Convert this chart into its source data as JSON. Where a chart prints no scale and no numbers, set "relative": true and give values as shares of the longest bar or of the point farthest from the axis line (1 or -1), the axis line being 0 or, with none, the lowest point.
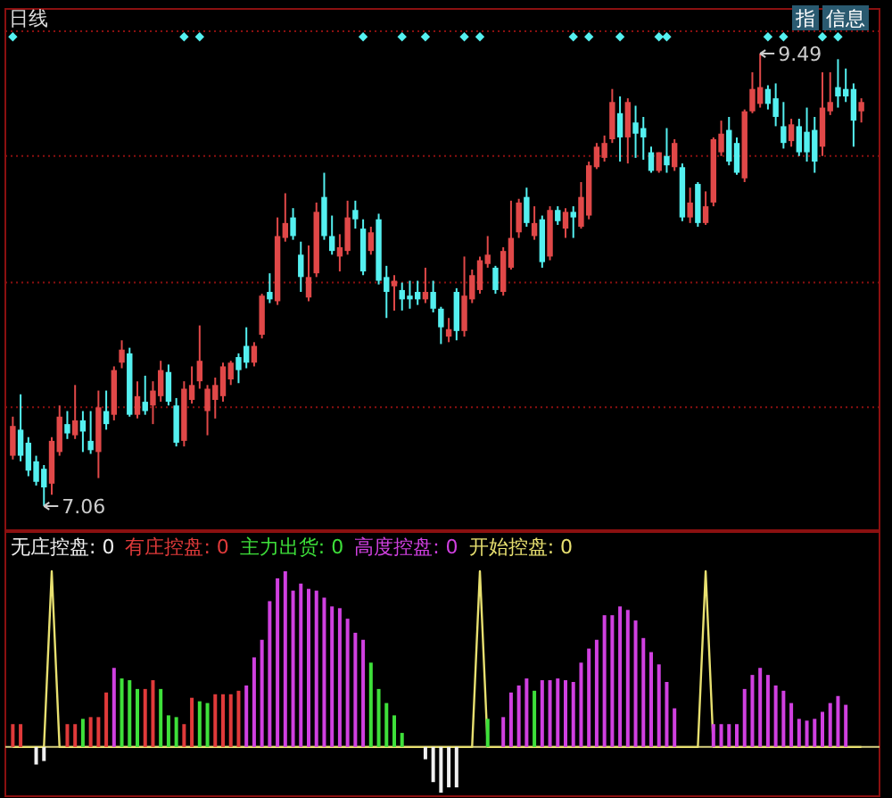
{
  "chart_data": [
    {
      "type": "candlestick",
      "title": "日线",
      "grid": "y",
      "ylim": [
        6.93,
        9.73
      ],
      "yticks": [
        {
          "value": 7.59,
          "label": null
        },
        {
          "value": 8.26,
          "label": null
        },
        {
          "value": 8.94,
          "label": null
        },
        {
          "value": 9.61,
          "label": null
        }
      ],
      "categories": [
        null,
        null,
        null,
        null,
        null,
        null,
        null,
        null,
        null,
        null,
        null,
        null,
        null,
        null,
        null,
        null,
        null,
        null,
        null,
        null,
        null,
        null,
        null,
        null,
        null,
        null,
        null,
        null,
        null,
        null,
        null,
        null,
        null,
        null,
        null,
        null,
        null,
        null,
        null,
        null,
        null,
        null,
        null,
        null,
        null,
        null,
        null,
        null,
        null,
        null,
        null,
        null,
        null,
        null,
        null,
        null,
        null,
        null,
        null,
        null,
        null,
        null,
        null,
        null,
        null,
        null,
        null,
        null,
        null,
        null,
        null,
        null,
        null,
        null,
        null,
        null,
        null,
        null,
        null,
        null,
        null,
        null,
        null,
        null,
        null,
        null,
        null,
        null,
        null,
        null,
        null,
        null,
        null,
        null,
        null,
        null,
        null,
        null,
        null,
        null,
        null,
        null,
        null,
        null,
        null,
        null,
        null,
        null,
        null,
        null
      ],
      "ohlc": [
        [
          7.33,
          7.54,
          7.31,
          7.49
        ],
        [
          7.47,
          7.66,
          7.3,
          7.33
        ],
        [
          7.4,
          7.43,
          7.22,
          7.25
        ],
        [
          7.3,
          7.33,
          7.17,
          7.19
        ],
        [
          7.26,
          7.28,
          7.06,
          7.16
        ],
        [
          7.18,
          7.43,
          7.12,
          7.41
        ],
        [
          7.35,
          7.6,
          7.33,
          7.54
        ],
        [
          7.5,
          7.57,
          7.42,
          7.45
        ],
        [
          7.44,
          7.71,
          7.42,
          7.52
        ],
        [
          7.52,
          7.57,
          7.35,
          7.46
        ],
        [
          7.41,
          7.57,
          7.34,
          7.36
        ],
        [
          7.35,
          7.68,
          7.21,
          7.59
        ],
        [
          7.57,
          7.68,
          7.47,
          7.5
        ],
        [
          7.55,
          7.81,
          7.52,
          7.79
        ],
        [
          7.83,
          7.95,
          7.8,
          7.9
        ],
        [
          7.88,
          7.91,
          7.54,
          7.55
        ],
        [
          7.55,
          7.73,
          7.53,
          7.65
        ],
        [
          7.62,
          7.76,
          7.55,
          7.57
        ],
        [
          7.6,
          7.73,
          7.5,
          7.68
        ],
        [
          7.65,
          7.84,
          7.62,
          7.79
        ],
        [
          7.78,
          7.82,
          7.6,
          7.62
        ],
        [
          7.6,
          7.64,
          7.38,
          7.4
        ],
        [
          7.41,
          7.73,
          7.38,
          7.69
        ],
        [
          7.63,
          7.81,
          7.61,
          7.71
        ],
        [
          7.73,
          8.03,
          7.69,
          7.84
        ],
        [
          7.57,
          7.71,
          7.44,
          7.69
        ],
        [
          7.63,
          7.75,
          7.53,
          7.71
        ],
        [
          7.65,
          7.83,
          7.62,
          7.81
        ],
        [
          7.74,
          7.84,
          7.71,
          7.83
        ],
        [
          7.86,
          7.88,
          7.72,
          7.79
        ],
        [
          7.92,
          8.02,
          7.8,
          7.83
        ],
        [
          7.83,
          7.94,
          7.81,
          7.92
        ],
        [
          7.98,
          8.2,
          7.96,
          8.19
        ],
        [
          8.21,
          8.31,
          8.15,
          8.17
        ],
        [
          8.16,
          8.61,
          8.14,
          8.51
        ],
        [
          8.5,
          8.74,
          8.48,
          8.58
        ],
        [
          8.61,
          8.66,
          8.49,
          8.51
        ],
        [
          8.41,
          8.48,
          8.21,
          8.29
        ],
        [
          8.18,
          8.46,
          8.16,
          8.29
        ],
        [
          8.31,
          8.69,
          8.29,
          8.64
        ],
        [
          8.72,
          8.85,
          8.49,
          8.51
        ],
        [
          8.51,
          8.62,
          8.41,
          8.43
        ],
        [
          8.4,
          8.52,
          8.32,
          8.45
        ],
        [
          8.43,
          8.7,
          8.41,
          8.61
        ],
        [
          8.65,
          8.7,
          8.55,
          8.6
        ],
        [
          8.55,
          8.6,
          8.3,
          8.32
        ],
        [
          8.43,
          8.56,
          8.41,
          8.53
        ],
        [
          8.6,
          8.63,
          8.25,
          8.27
        ],
        [
          8.29,
          8.35,
          8.07,
          8.21
        ],
        [
          8.24,
          8.3,
          8.11,
          8.27
        ],
        [
          8.22,
          8.26,
          8.11,
          8.17
        ],
        [
          8.19,
          8.27,
          8.12,
          8.17
        ],
        [
          8.21,
          8.27,
          8.14,
          8.17
        ],
        [
          8.17,
          8.34,
          8.15,
          8.21
        ],
        [
          8.21,
          8.27,
          8.1,
          8.12
        ],
        [
          8.12,
          8.13,
          7.93,
          8.02
        ],
        [
          7.97,
          8.07,
          7.94,
          8.01
        ],
        [
          8.21,
          8.23,
          7.95,
          8.0
        ],
        [
          8.0,
          8.4,
          7.97,
          8.19
        ],
        [
          8.17,
          8.33,
          8.15,
          8.3
        ],
        [
          8.22,
          8.4,
          8.2,
          8.38
        ],
        [
          8.36,
          8.51,
          8.34,
          8.41
        ],
        [
          8.34,
          8.35,
          8.2,
          8.22
        ],
        [
          8.21,
          8.45,
          8.19,
          8.43
        ],
        [
          8.34,
          8.7,
          8.33,
          8.5
        ],
        [
          8.53,
          8.71,
          8.5,
          8.69
        ],
        [
          8.72,
          8.77,
          8.56,
          8.58
        ],
        [
          8.51,
          8.67,
          8.49,
          8.58
        ],
        [
          8.6,
          8.62,
          8.34,
          8.37
        ],
        [
          8.4,
          8.67,
          8.38,
          8.65
        ],
        [
          8.65,
          8.67,
          8.57,
          8.59
        ],
        [
          8.55,
          8.66,
          8.5,
          8.64
        ],
        [
          8.64,
          8.67,
          8.5,
          8.61
        ],
        [
          8.56,
          8.8,
          8.55,
          8.72
        ],
        [
          8.62,
          8.91,
          8.6,
          8.89
        ],
        [
          8.88,
          9.01,
          8.87,
          8.99
        ],
        [
          8.93,
          9.05,
          8.91,
          9.01
        ],
        [
          9.03,
          9.3,
          9.01,
          9.23
        ],
        [
          9.17,
          9.26,
          8.91,
          9.04
        ],
        [
          9.04,
          9.25,
          8.9,
          9.23
        ],
        [
          9.12,
          9.21,
          8.93,
          9.06
        ],
        [
          9.09,
          9.15,
          8.92,
          9.04
        ],
        [
          8.96,
          8.99,
          8.85,
          8.86
        ],
        [
          8.86,
          8.96,
          8.85,
          8.96
        ],
        [
          8.94,
          9.09,
          8.85,
          8.89
        ],
        [
          8.88,
          9.03,
          8.86,
          9.01
        ],
        [
          8.88,
          8.9,
          8.59,
          8.61
        ],
        [
          8.61,
          8.77,
          8.58,
          8.69
        ],
        [
          8.79,
          8.8,
          8.56,
          8.58
        ],
        [
          8.58,
          8.75,
          8.57,
          8.67
        ],
        [
          8.69,
          9.04,
          8.67,
          9.03
        ],
        [
          8.96,
          9.13,
          8.94,
          9.06
        ],
        [
          9.08,
          9.15,
          8.89,
          8.91
        ],
        [
          9.01,
          9.04,
          8.84,
          8.85
        ],
        [
          8.82,
          9.19,
          8.8,
          9.18
        ],
        [
          9.18,
          9.39,
          9.17,
          9.3
        ],
        [
          9.22,
          9.49,
          9.2,
          9.31
        ],
        [
          9.3,
          9.32,
          9.19,
          9.22
        ],
        [
          9.25,
          9.33,
          9.1,
          9.15
        ],
        [
          9.1,
          9.23,
          8.98,
          9.01
        ],
        [
          9.02,
          9.14,
          8.99,
          9.11
        ],
        [
          9.1,
          9.14,
          8.94,
          8.96
        ],
        [
          9.07,
          9.2,
          8.91,
          8.96
        ],
        [
          9.08,
          9.15,
          8.85,
          8.91
        ],
        [
          8.99,
          9.39,
          8.94,
          9.2
        ],
        [
          9.18,
          9.39,
          9.16,
          9.23
        ],
        [
          9.31,
          9.46,
          9.2,
          9.26
        ],
        [
          9.3,
          9.41,
          9.23,
          9.26
        ],
        [
          9.3,
          9.33,
          8.99,
          9.13
        ],
        [
          9.18,
          9.25,
          9.12,
          9.23
        ]
      ],
      "colors": [
        "#e04848",
        "#54f0f0",
        "#54f0f0",
        "#54f0f0",
        "#54f0f0",
        "#e04848",
        "#e04848",
        "#54f0f0",
        "#e04848",
        "#54f0f0",
        "#54f0f0",
        "#e04848",
        "#54f0f0",
        "#e04848",
        "#e04848",
        "#54f0f0",
        "#e04848",
        "#54f0f0",
        "#e04848",
        "#e04848",
        "#54f0f0",
        "#54f0f0",
        "#e04848",
        "#e04848",
        "#e04848",
        "#e04848",
        "#e04848",
        "#e04848",
        "#e04848",
        "#54f0f0",
        "#54f0f0",
        "#e04848",
        "#e04848",
        "#54f0f0",
        "#e04848",
        "#e04848",
        "#54f0f0",
        "#54f0f0",
        "#e04848",
        "#e04848",
        "#54f0f0",
        "#54f0f0",
        "#e04848",
        "#e04848",
        "#54f0f0",
        "#54f0f0",
        "#e04848",
        "#54f0f0",
        "#54f0f0",
        "#e04848",
        "#54f0f0",
        "#54f0f0",
        "#54f0f0",
        "#e04848",
        "#54f0f0",
        "#54f0f0",
        "#e04848",
        "#54f0f0",
        "#e04848",
        "#e04848",
        "#e04848",
        "#e04848",
        "#54f0f0",
        "#e04848",
        "#e04848",
        "#e04848",
        "#54f0f0",
        "#e04848",
        "#54f0f0",
        "#e04848",
        "#54f0f0",
        "#e04848",
        "#54f0f0",
        "#e04848",
        "#e04848",
        "#e04848",
        "#e04848",
        "#e04848",
        "#54f0f0",
        "#e04848",
        "#54f0f0",
        "#54f0f0",
        "#54f0f0",
        "#e04848",
        "#54f0f0",
        "#e04848",
        "#54f0f0",
        "#e04848",
        "#54f0f0",
        "#e04848",
        "#e04848",
        "#e04848",
        "#54f0f0",
        "#54f0f0",
        "#e04848",
        "#e04848",
        "#e04848",
        "#54f0f0",
        "#54f0f0",
        "#54f0f0",
        "#e04848",
        "#54f0f0",
        "#54f0f0",
        "#54f0f0",
        "#e04848",
        "#e04848",
        "#54f0f0",
        "#54f0f0",
        "#54f0f0",
        "#e04848"
      ],
      "series": [
        {
          "type": "scatter",
          "marker": "diamond",
          "color": "#54f0f0",
          "values": [
            9.58,
            null,
            null,
            null,
            null,
            null,
            null,
            null,
            null,
            null,
            null,
            null,
            null,
            null,
            null,
            null,
            null,
            null,
            null,
            null,
            null,
            null,
            9.58,
            null,
            9.58,
            null,
            null,
            null,
            null,
            null,
            null,
            null,
            null,
            null,
            null,
            null,
            null,
            null,
            null,
            null,
            null,
            null,
            null,
            null,
            null,
            9.58,
            null,
            null,
            null,
            null,
            9.58,
            null,
            null,
            9.58,
            null,
            null,
            null,
            null,
            9.58,
            null,
            9.58,
            null,
            null,
            null,
            null,
            null,
            null,
            null,
            null,
            null,
            null,
            null,
            9.58,
            null,
            9.58,
            null,
            null,
            null,
            9.58,
            null,
            null,
            null,
            null,
            9.58,
            9.58,
            null,
            null,
            null,
            null,
            null,
            null,
            null,
            null,
            null,
            null,
            null,
            null,
            9.58,
            null,
            9.58,
            null,
            null,
            null,
            null,
            9.58,
            null,
            9.58,
            null,
            null,
            null
          ]
        }
      ],
      "annotations": [
        "7.06",
        "9.49",
        "指",
        "信息"
      ]
    },
    {
      "type": "bar",
      "relative": true,
      "ref_lines": [
        {
          "axis": "y",
          "value": 0,
          "color": "#d8d080"
        }
      ],
      "categories": [
        null,
        null,
        null,
        null,
        null,
        null,
        null,
        null,
        null,
        null,
        null,
        null,
        null,
        null,
        null,
        null,
        null,
        null,
        null,
        null,
        null,
        null,
        null,
        null,
        null,
        null,
        null,
        null,
        null,
        null,
        null,
        null,
        null,
        null,
        null,
        null,
        null,
        null,
        null,
        null,
        null,
        null,
        null,
        null,
        null,
        null,
        null,
        null,
        null,
        null,
        null,
        null,
        null,
        null,
        null,
        null,
        null,
        null,
        null,
        null,
        null,
        null,
        null,
        null,
        null,
        null,
        null,
        null,
        null,
        null,
        null,
        null,
        null,
        null,
        null,
        null,
        null,
        null,
        null,
        null,
        null,
        null,
        null,
        null,
        null,
        null,
        null,
        null,
        null,
        null,
        null,
        null,
        null,
        null,
        null,
        null,
        null,
        null,
        null,
        null,
        null,
        null,
        null,
        null,
        null,
        null,
        null,
        null,
        null,
        null
      ],
      "series": [
        {
          "name": "无庄控盘: 0",
          "color": "#f0f0f0",
          "values": [
            null,
            null,
            null,
            -0.1,
            -0.08,
            null,
            null,
            null,
            null,
            null,
            null,
            null,
            null,
            null,
            null,
            null,
            null,
            null,
            null,
            null,
            null,
            null,
            null,
            null,
            null,
            null,
            null,
            null,
            null,
            null,
            null,
            null,
            null,
            null,
            null,
            null,
            null,
            null,
            null,
            null,
            null,
            null,
            null,
            null,
            null,
            null,
            null,
            null,
            null,
            null,
            null,
            null,
            null,
            -0.07,
            -0.2,
            -0.26,
            -0.23,
            -0.23,
            null,
            null,
            null,
            null,
            null,
            null,
            null,
            null,
            null,
            null,
            null,
            null,
            null,
            null,
            null,
            null,
            null,
            null,
            null,
            null,
            null,
            null,
            null,
            null,
            null,
            null,
            null,
            null,
            null,
            null,
            null,
            null,
            null,
            null,
            null,
            null,
            null,
            null,
            null,
            null,
            null,
            null,
            null,
            null,
            null,
            null,
            null,
            null,
            null,
            null,
            null,
            null
          ]
        },
        {
          "name": "有庄控盘: 0",
          "color": "#e03a3a",
          "values": [
            0.13,
            0.13,
            null,
            null,
            null,
            null,
            null,
            0.13,
            0.13,
            null,
            0.17,
            0.17,
            0.31,
            null,
            null,
            null,
            null,
            0.33,
            0.38,
            null,
            null,
            null,
            0.13,
            0.28,
            null,
            null,
            0.3,
            0.3,
            0.3,
            0.32,
            null,
            null,
            null,
            null,
            null,
            null,
            null,
            null,
            null,
            null,
            null,
            null,
            null,
            null,
            null,
            null,
            null,
            null,
            null,
            null,
            null,
            null,
            null,
            null,
            null,
            null,
            null,
            null,
            null,
            null,
            null,
            null,
            null,
            null,
            null,
            null,
            null,
            null,
            null,
            null,
            null,
            null,
            null,
            null,
            null,
            null,
            null,
            null,
            null,
            null,
            null,
            null,
            null,
            null,
            null,
            null,
            null,
            null,
            null,
            null,
            null,
            null,
            null,
            null,
            null,
            null,
            null,
            null,
            null,
            null,
            null,
            null,
            null,
            null,
            null,
            null,
            null,
            null,
            null,
            null
          ]
        },
        {
          "name": "主力出货: 0",
          "color": "#3ee03a",
          "values": [
            null,
            null,
            null,
            null,
            null,
            null,
            null,
            null,
            null,
            0.16,
            null,
            null,
            null,
            null,
            0.39,
            0.38,
            0.33,
            null,
            null,
            0.33,
            0.18,
            0.17,
            null,
            null,
            0.26,
            0.25,
            null,
            null,
            null,
            null,
            null,
            null,
            null,
            null,
            null,
            null,
            null,
            null,
            null,
            null,
            null,
            null,
            null,
            null,
            null,
            null,
            0.48,
            0.33,
            0.25,
            0.18,
            0.08,
            null,
            null,
            null,
            null,
            null,
            null,
            null,
            null,
            null,
            null,
            0.16,
            null,
            null,
            null,
            null,
            null,
            0.32,
            null,
            null,
            null,
            null,
            null,
            null,
            null,
            null,
            null,
            null,
            null,
            null,
            null,
            null,
            null,
            null,
            null,
            null,
            null,
            null,
            null,
            null,
            null,
            null,
            null,
            null,
            null,
            null,
            null,
            null,
            null,
            null,
            null,
            null,
            null,
            null,
            null,
            null,
            null,
            null,
            null,
            null
          ]
        },
        {
          "name": "高度控盘: 0",
          "color": "#d040e0",
          "values": [
            null,
            null,
            null,
            null,
            null,
            null,
            null,
            null,
            null,
            null,
            null,
            null,
            null,
            0.45,
            null,
            null,
            null,
            null,
            null,
            null,
            null,
            null,
            null,
            null,
            null,
            null,
            null,
            null,
            null,
            null,
            0.35,
            0.51,
            0.61,
            0.83,
            0.96,
            1,
            0.89,
            0.93,
            0.9,
            0.89,
            0.85,
            0.8,
            0.79,
            0.73,
            0.65,
            0.61,
            null,
            null,
            null,
            null,
            null,
            null,
            null,
            null,
            null,
            null,
            null,
            null,
            null,
            null,
            null,
            null,
            null,
            0.17,
            0.31,
            0.35,
            0.39,
            null,
            0.38,
            0.38,
            0.39,
            0.38,
            0.37,
            0.48,
            0.56,
            0.61,
            0.75,
            0.75,
            0.8,
            0.78,
            0.72,
            0.62,
            0.54,
            0.47,
            0.37,
            0.22,
            null,
            null,
            null,
            null,
            0.13,
            0.13,
            0.13,
            0.13,
            0.33,
            0.41,
            0.45,
            0.41,
            0.35,
            0.32,
            0.25,
            0.16,
            0.15,
            0.16,
            0.2,
            0.25,
            0.29,
            0.24,
            null,
            null
          ]
        },
        {
          "name": "开始控盘: 0",
          "type": "line",
          "color": "#e8e070",
          "values": [
            0,
            0,
            0,
            0,
            0,
            1,
            0,
            0,
            0,
            0,
            0,
            0,
            0,
            0,
            0,
            0,
            0,
            0,
            0,
            0,
            0,
            0,
            0,
            0,
            0,
            0,
            0,
            0,
            0,
            0,
            0,
            0,
            0,
            0,
            0,
            0,
            0,
            0,
            0,
            0,
            0,
            0,
            0,
            0,
            0,
            0,
            0,
            0,
            0,
            0,
            0,
            0,
            0,
            0,
            0,
            0,
            0,
            0,
            0,
            0,
            1,
            0,
            0,
            0,
            0,
            0,
            0,
            0,
            0,
            0,
            0,
            0,
            0,
            0,
            0,
            0,
            0,
            0,
            0,
            0,
            0,
            0,
            0,
            0,
            0,
            0,
            0,
            0,
            0,
            1,
            0,
            0,
            0,
            0,
            0,
            0,
            0,
            0,
            0,
            0,
            0,
            0,
            0,
            0,
            0,
            0,
            0,
            0,
            0,
            0
          ]
        }
      ]
    }
  ]
}
